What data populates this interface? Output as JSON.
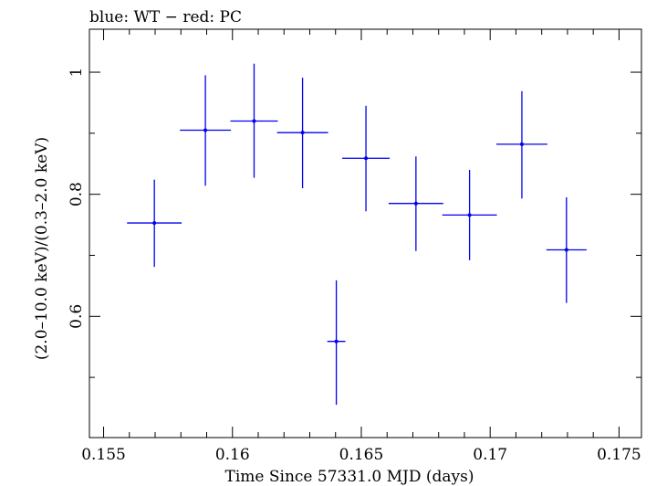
{
  "chart_data": {
    "type": "scatter",
    "title": "blue: WT − red: PC",
    "xlabel": "Time Since 57331.0 MJD (days)",
    "ylabel": "(2.0–10.0 keV)/(0.3–2.0 keV)",
    "xlim": [
      0.15445,
      0.17587
    ],
    "ylim": [
      0.4014,
      1.0704
    ],
    "x_ticks": [
      "0.155",
      "0.16",
      "0.165",
      "0.17",
      "0.175"
    ],
    "x_tick_values": [
      0.155,
      0.16,
      0.165,
      0.17,
      0.175
    ],
    "y_ticks": [
      "0.6",
      "0.8",
      "1"
    ],
    "y_tick_values": [
      0.6,
      0.8,
      1.0
    ],
    "grid": false,
    "series": [
      {
        "color": "#0000ee",
        "points": [
          {
            "x": 0.15697,
            "y": 0.753,
            "xerr": 0.00106,
            "yerr_lo": 0.072,
            "yerr_hi": 0.071
          },
          {
            "x": 0.15895,
            "y": 0.905,
            "xerr": 0.00099,
            "yerr_lo": 0.091,
            "yerr_hi": 0.09
          },
          {
            "x": 0.16084,
            "y": 0.92,
            "xerr": 0.00092,
            "yerr_lo": 0.093,
            "yerr_hi": 0.094
          },
          {
            "x": 0.16272,
            "y": 0.901,
            "xerr": 0.00099,
            "yerr_lo": 0.091,
            "yerr_hi": 0.09
          },
          {
            "x": 0.16403,
            "y": 0.559,
            "xerr": 0.00035,
            "yerr_lo": 0.104,
            "yerr_hi": 0.1
          },
          {
            "x": 0.16518,
            "y": 0.859,
            "xerr": 0.00092,
            "yerr_lo": 0.087,
            "yerr_hi": 0.086
          },
          {
            "x": 0.16712,
            "y": 0.785,
            "xerr": 0.00106,
            "yerr_lo": 0.078,
            "yerr_hi": 0.077
          },
          {
            "x": 0.1692,
            "y": 0.766,
            "xerr": 0.00106,
            "yerr_lo": 0.074,
            "yerr_hi": 0.074
          },
          {
            "x": 0.17123,
            "y": 0.882,
            "xerr": 0.00099,
            "yerr_lo": 0.089,
            "yerr_hi": 0.087
          },
          {
            "x": 0.17296,
            "y": 0.709,
            "xerr": 0.00078,
            "yerr_lo": 0.087,
            "yerr_hi": 0.086
          }
        ]
      }
    ]
  }
}
